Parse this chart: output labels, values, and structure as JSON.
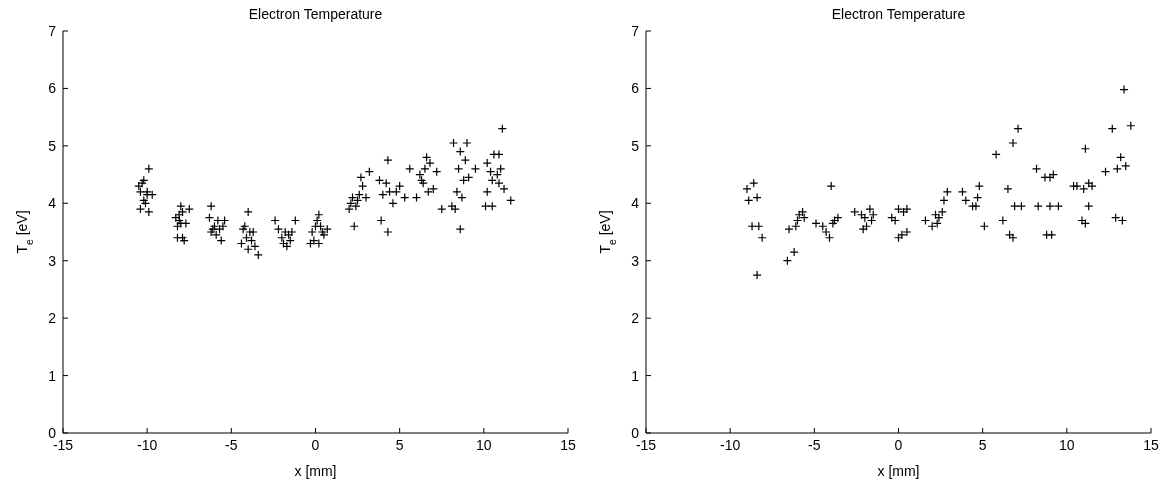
{
  "chart_data": [
    {
      "type": "scatter",
      "title": "Electron Temperature",
      "xlabel": "x [mm]",
      "ylabel": "T$_{e}$ [eV]",
      "xlim": [
        -15,
        15
      ],
      "xticks": [
        -15,
        -10,
        -5,
        0,
        5,
        10,
        15
      ],
      "ylim": [
        0,
        7
      ],
      "yticks": [
        0,
        1,
        2,
        3,
        4,
        5,
        6,
        7
      ],
      "marker": "cross",
      "grid": false,
      "legend": false,
      "series": [
        {
          "color": "#000000",
          "x": [
            -10.5,
            -10.4,
            -10.3,
            -10.2,
            -10.1,
            -10.0,
            -9.9,
            -9.7,
            -10.4,
            -9.9,
            -10.2,
            -10.0,
            -8.3,
            -8.1,
            -8.0,
            -7.9,
            -8.2,
            -8.0,
            -7.5,
            -7.7,
            -8.2,
            -7.8,
            -7.9,
            -8.1,
            -6.2,
            -6.3,
            -6.0,
            -5.8,
            -5.7,
            -6.2,
            -5.9,
            -5.5,
            -5.6,
            -6.1,
            -5.4,
            -4.0,
            -4.3,
            -4.1,
            -3.9,
            -3.7,
            -4.4,
            -4.0,
            -3.6,
            -3.4,
            -4.2,
            -3.8,
            -2.2,
            -1.8,
            -1.6,
            -2.0,
            -1.5,
            -1.9,
            -1.2,
            -2.4,
            -1.7,
            -1.4,
            0.0,
            0.2,
            -0.2,
            0.4,
            0.3,
            -0.1,
            0.2,
            0.5,
            0.7,
            -0.3,
            0.1,
            2.0,
            2.3,
            2.2,
            2.6,
            2.5,
            2.8,
            3.2,
            2.7,
            2.1,
            2.4,
            3.0,
            3.8,
            4.2,
            4.3,
            4.0,
            4.4,
            3.9,
            4.3,
            5.0,
            5.3,
            4.8,
            5.6,
            4.6,
            6.0,
            6.2,
            6.5,
            6.8,
            6.4,
            6.7,
            7.0,
            7.2,
            6.3,
            7.5,
            6.6,
            8.2,
            8.6,
            9.0,
            8.9,
            8.5,
            8.8,
            9.1,
            8.4,
            8.7,
            8.1,
            8.3,
            8.6,
            9.5,
            10.2,
            10.6,
            10.9,
            11.1,
            10.4,
            10.5,
            10.8,
            10.9,
            11.2,
            10.2,
            10.1,
            10.5,
            11.6,
            11.0
          ],
          "values": [
            4.3,
            4.2,
            4.35,
            4.05,
            4.0,
            4.15,
            4.6,
            4.15,
            3.9,
            3.85,
            4.4,
            4.2,
            3.75,
            3.8,
            3.95,
            3.85,
            3.6,
            3.65,
            3.9,
            3.65,
            3.4,
            3.35,
            3.4,
            3.7,
            3.95,
            3.75,
            3.6,
            3.7,
            3.55,
            3.5,
            3.45,
            3.6,
            3.35,
            3.55,
            3.7,
            3.85,
            3.55,
            3.4,
            3.5,
            3.5,
            3.3,
            3.2,
            3.25,
            3.1,
            3.6,
            3.35,
            3.55,
            3.5,
            3.45,
            3.4,
            3.35,
            3.3,
            3.7,
            3.7,
            3.25,
            3.5,
            3.6,
            3.8,
            3.5,
            3.5,
            3.6,
            3.35,
            3.3,
            3.45,
            3.55,
            3.3,
            3.7,
            3.9,
            3.6,
            4.1,
            4.15,
            4.05,
            4.3,
            4.55,
            4.45,
            4.0,
            3.95,
            4.1,
            4.4,
            4.35,
            4.75,
            4.15,
            4.2,
            3.7,
            3.5,
            4.3,
            4.1,
            4.2,
            4.6,
            4.0,
            4.1,
            4.5,
            4.6,
            4.7,
            4.35,
            4.2,
            4.25,
            4.55,
            4.4,
            3.9,
            4.8,
            5.05,
            4.9,
            5.05,
            4.75,
            4.6,
            4.4,
            4.45,
            4.2,
            4.1,
            3.95,
            3.9,
            3.55,
            4.6,
            4.7,
            4.85,
            4.85,
            5.3,
            4.55,
            4.4,
            4.5,
            4.35,
            4.25,
            4.2,
            3.95,
            3.95,
            4.05,
            4.6
          ]
        }
      ]
    },
    {
      "type": "scatter",
      "title": "Electron Temperature",
      "xlabel": "x [mm]",
      "ylabel": "T$_{e}$ [eV]",
      "xlim": [
        -15,
        15
      ],
      "xticks": [
        -15,
        -10,
        -5,
        0,
        5,
        10,
        15
      ],
      "ylim": [
        0,
        7
      ],
      "yticks": [
        0,
        1,
        2,
        3,
        4,
        5,
        6,
        7
      ],
      "marker": "cross",
      "grid": false,
      "legend": false,
      "series": [
        {
          "color": "#000000",
          "x": [
            -9.0,
            -8.6,
            -8.9,
            -8.4,
            -8.7,
            -8.3,
            -8.1,
            -8.4,
            -6.6,
            -6.2,
            -6.5,
            -6.1,
            -5.9,
            -5.7,
            -6.0,
            -5.6,
            -4.9,
            -4.5,
            -4.3,
            -4.1,
            -4.0,
            -3.8,
            -3.6,
            -3.9,
            -2.6,
            -2.2,
            -2.0,
            -1.7,
            -1.9,
            -1.6,
            -2.1,
            -1.5,
            -0.4,
            -0.2,
            0.0,
            0.3,
            0.5,
            0.2,
            0.0,
            0.5,
            1.6,
            2.2,
            2.4,
            2.3,
            2.6,
            2.7,
            2.9,
            2.0,
            3.8,
            4.0,
            4.4,
            4.7,
            4.8,
            4.6,
            5.1,
            5.8,
            6.2,
            6.5,
            6.8,
            7.1,
            6.6,
            6.8,
            6.9,
            7.3,
            8.2,
            8.7,
            9.2,
            9.0,
            8.3,
            9.0,
            9.5,
            8.8,
            9.1,
            10.4,
            10.6,
            11.0,
            11.3,
            11.5,
            10.9,
            11.1,
            11.1,
            11.3,
            12.3,
            12.7,
            13.0,
            13.2,
            13.5,
            13.4,
            13.8,
            12.9,
            13.3
          ],
          "values": [
            4.25,
            4.35,
            4.05,
            4.1,
            3.6,
            3.6,
            3.4,
            2.75,
            3.0,
            3.15,
            3.55,
            3.6,
            3.8,
            3.85,
            3.7,
            3.75,
            3.65,
            3.6,
            3.5,
            3.4,
            4.3,
            3.7,
            3.75,
            3.65,
            3.85,
            3.8,
            3.75,
            3.9,
            3.6,
            3.7,
            3.55,
            3.8,
            3.75,
            3.7,
            3.9,
            3.85,
            3.9,
            3.45,
            3.4,
            3.5,
            3.7,
            3.8,
            3.75,
            3.65,
            3.85,
            4.05,
            4.2,
            3.6,
            4.2,
            4.05,
            3.95,
            4.1,
            4.3,
            3.95,
            3.6,
            4.85,
            3.7,
            4.25,
            5.05,
            5.3,
            3.45,
            3.4,
            3.95,
            3.95,
            4.6,
            4.45,
            4.5,
            4.45,
            3.95,
            3.95,
            3.95,
            3.45,
            3.45,
            4.3,
            4.3,
            4.25,
            4.35,
            4.3,
            3.7,
            3.65,
            4.95,
            3.95,
            4.55,
            5.3,
            4.6,
            4.8,
            4.65,
            5.98,
            5.35,
            3.75,
            3.7
          ]
        }
      ]
    }
  ]
}
